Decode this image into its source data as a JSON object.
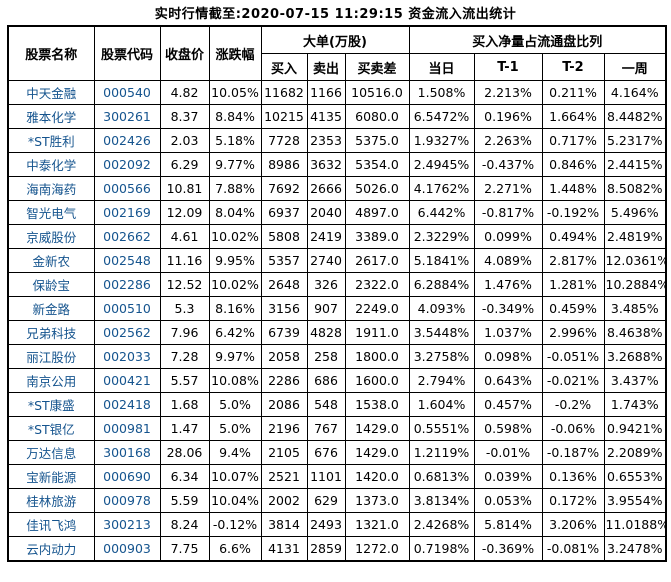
{
  "title": "实时行情截至:2020-07-15 11:29:15 资金流入流出统计",
  "colors": {
    "stock_link_blue": "#15548e",
    "text": "#000000",
    "border": "#000000",
    "background": "#ffffff"
  },
  "table": {
    "header": {
      "stock_name": "股票名称",
      "stock_code": "股票代码",
      "close_price": "收盘价",
      "change_pct": "涨跌幅",
      "big_order_group": "大单(万股)",
      "buy": "买入",
      "sell": "卖出",
      "buy_sell_diff": "买卖差",
      "net_buy_group": "买入净量占流通盘比列",
      "today": "当日",
      "t_minus_1": "T-1",
      "t_minus_2": "T-2",
      "one_week": "一周"
    },
    "col_names": [
      "stock-name-cell",
      "stock-code-cell",
      "close-price-cell",
      "change-pct-cell",
      "buy-cell",
      "sell-cell",
      "buy-sell-diff-cell",
      "today-ratio-cell",
      "t1-ratio-cell",
      "t2-ratio-cell",
      "week-ratio-cell"
    ],
    "rows": [
      [
        "中天金融",
        "000540",
        "4.82",
        "10.05%",
        "11682",
        "1166",
        "10516.0",
        "1.508%",
        "2.213%",
        "0.211%",
        "4.164%"
      ],
      [
        "雅本化学",
        "300261",
        "8.37",
        "8.84%",
        "10215",
        "4135",
        "6080.0",
        "6.5472%",
        "0.196%",
        "1.664%",
        "8.4482%"
      ],
      [
        "*ST胜利",
        "002426",
        "2.03",
        "5.18%",
        "7728",
        "2353",
        "5375.0",
        "1.9327%",
        "2.263%",
        "0.717%",
        "5.2317%"
      ],
      [
        "中泰化学",
        "002092",
        "6.29",
        "9.77%",
        "8986",
        "3632",
        "5354.0",
        "2.4945%",
        "-0.437%",
        "0.846%",
        "2.4415%"
      ],
      [
        "海南海药",
        "000566",
        "10.81",
        "7.88%",
        "7692",
        "2666",
        "5026.0",
        "4.1762%",
        "2.271%",
        "1.448%",
        "8.5082%"
      ],
      [
        "智光电气",
        "002169",
        "12.09",
        "8.04%",
        "6937",
        "2040",
        "4897.0",
        "6.442%",
        "-0.817%",
        "-0.192%",
        "5.496%"
      ],
      [
        "京威股份",
        "002662",
        "4.61",
        "10.02%",
        "5808",
        "2419",
        "3389.0",
        "2.3229%",
        "0.099%",
        "0.494%",
        "2.4819%"
      ],
      [
        "金新农",
        "002548",
        "11.16",
        "9.95%",
        "5357",
        "2740",
        "2617.0",
        "5.1841%",
        "4.089%",
        "2.817%",
        "12.0361%"
      ],
      [
        "保龄宝",
        "002286",
        "12.52",
        "10.02%",
        "2648",
        "326",
        "2322.0",
        "6.2884%",
        "1.476%",
        "1.281%",
        "10.2884%"
      ],
      [
        "新金路",
        "000510",
        "5.3",
        "8.16%",
        "3156",
        "907",
        "2249.0",
        "4.093%",
        "-0.349%",
        "0.459%",
        "3.485%"
      ],
      [
        "兄弟科技",
        "002562",
        "7.96",
        "6.42%",
        "6739",
        "4828",
        "1911.0",
        "3.5448%",
        "1.037%",
        "2.996%",
        "8.4638%"
      ],
      [
        "丽江股份",
        "002033",
        "7.28",
        "9.97%",
        "2058",
        "258",
        "1800.0",
        "3.2758%",
        "0.098%",
        "-0.051%",
        "3.2688%"
      ],
      [
        "南京公用",
        "000421",
        "5.57",
        "10.08%",
        "2286",
        "686",
        "1600.0",
        "2.794%",
        "0.643%",
        "-0.021%",
        "3.437%"
      ],
      [
        "*ST康盛",
        "002418",
        "1.68",
        "5.0%",
        "2086",
        "548",
        "1538.0",
        "1.604%",
        "0.457%",
        "-0.2%",
        "1.743%"
      ],
      [
        "*ST银亿",
        "000981",
        "1.47",
        "5.0%",
        "2196",
        "767",
        "1429.0",
        "0.5551%",
        "0.598%",
        "-0.06%",
        "0.9421%"
      ],
      [
        "万达信息",
        "300168",
        "28.06",
        "9.4%",
        "2105",
        "676",
        "1429.0",
        "1.2119%",
        "-0.01%",
        "-0.187%",
        "2.2089%"
      ],
      [
        "宝新能源",
        "000690",
        "6.34",
        "10.07%",
        "2521",
        "1101",
        "1420.0",
        "0.6813%",
        "0.039%",
        "0.136%",
        "0.6553%"
      ],
      [
        "桂林旅游",
        "000978",
        "5.59",
        "10.04%",
        "2002",
        "629",
        "1373.0",
        "3.8134%",
        "0.053%",
        "0.172%",
        "3.9554%"
      ],
      [
        "佳讯飞鸿",
        "300213",
        "8.24",
        "-0.12%",
        "3814",
        "2493",
        "1321.0",
        "2.4268%",
        "5.814%",
        "3.206%",
        "11.0188%"
      ],
      [
        "云内动力",
        "000903",
        "7.75",
        "6.6%",
        "4131",
        "2859",
        "1272.0",
        "0.7198%",
        "-0.369%",
        "-0.081%",
        "3.2478%"
      ]
    ]
  }
}
